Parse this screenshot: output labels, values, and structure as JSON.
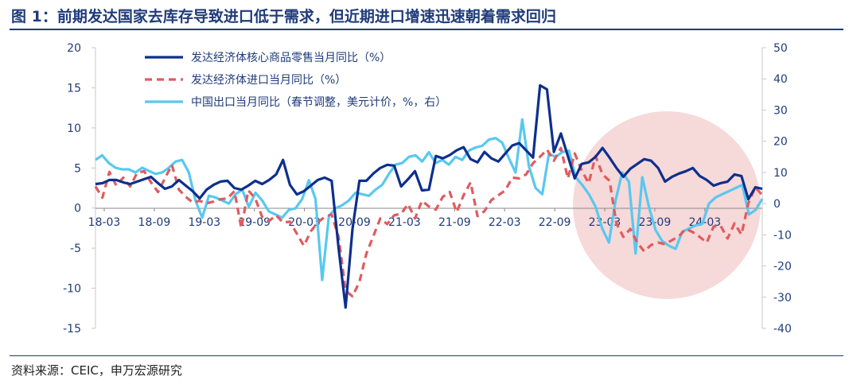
{
  "title": "图 1：前期发达国家去库存导致进口低于需求，但近期进口增速迅速朝着需求回归",
  "source": "资料来源：CEIC，申万宏源研究",
  "colors": {
    "core_retail": "#0d2f8e",
    "dev_import": "#e05b5f",
    "china_export": "#58c8f0",
    "highlight": "#f6d9d9",
    "axis": "#1f3b7a"
  },
  "chart_data": {
    "type": "line",
    "y_left_lim": [
      -15,
      20
    ],
    "y_right_lim": [
      -40,
      50
    ],
    "y_left_ticks": [
      "-15",
      "-10",
      "-5",
      "0",
      "5",
      "10",
      "15",
      "20"
    ],
    "y_right_ticks": [
      "-40",
      "-30",
      "-20",
      "-10",
      "0",
      "10",
      "20",
      "30",
      "40",
      "50"
    ],
    "x_ticks": [
      "18-03",
      "18-09",
      "19-03",
      "19-09",
      "20-03",
      "20-09",
      "21-03",
      "21-09",
      "22-03",
      "22-09",
      "23-03",
      "23-09",
      "24-03"
    ],
    "grid": false,
    "legend_position": "top-left",
    "series": [
      {
        "name": "发达经济体核心商品零售当月同比（%）",
        "axis": "left",
        "style": "solid",
        "values": [
          3.0,
          3.1,
          3.5,
          3.5,
          3.2,
          3.0,
          3.3,
          3.6,
          3.9,
          3.1,
          2.4,
          2.7,
          3.5,
          2.8,
          2.1,
          1.2,
          2.3,
          2.9,
          3.3,
          3.4,
          2.5,
          2.3,
          2.8,
          3.4,
          3.0,
          3.5,
          4.2,
          6.0,
          2.9,
          1.7,
          2.1,
          2.8,
          3.5,
          3.8,
          3.4,
          -5.0,
          -12.4,
          -2.6,
          3.4,
          3.4,
          4.3,
          5.0,
          5.4,
          5.3,
          2.7,
          3.6,
          4.6,
          2.2,
          2.3,
          6.5,
          6.2,
          6.6,
          7.2,
          7.6,
          6.1,
          5.7,
          7.0,
          6.2,
          5.8,
          6.8,
          7.8,
          8.1,
          7.2,
          6.3,
          15.3,
          14.8,
          7.0,
          9.3,
          6.5,
          3.7,
          5.5,
          5.7,
          6.4,
          7.5,
          6.3,
          5.0,
          3.9,
          4.9,
          5.5,
          6.1,
          5.9,
          5.0,
          3.3,
          3.9,
          4.3,
          4.6,
          5.0,
          4.0,
          3.5,
          2.8,
          3.1,
          3.3,
          4.2,
          4.0,
          1.1,
          2.6,
          2.4
        ]
      },
      {
        "name": "发达经济体进口当月同比（%）",
        "axis": "left",
        "style": "dashed",
        "values": [
          2.7,
          1.3,
          4.5,
          2.8,
          3.8,
          2.7,
          4.4,
          4.6,
          3.2,
          2.0,
          3.7,
          5.4,
          2.3,
          1.4,
          0.7,
          0.9,
          0.6,
          0.8,
          1.1,
          1.2,
          2.1,
          -2.5,
          2.2,
          1.2,
          -1.1,
          -1.6,
          -0.9,
          -1.8,
          -1.7,
          -3.2,
          -4.7,
          -2.9,
          -1.8,
          -1.1,
          -0.8,
          -3.6,
          -10.3,
          -11.0,
          -9.2,
          -5.7,
          -3.5,
          -1.3,
          -2.0,
          -0.9,
          -0.7,
          0.5,
          -1.3,
          0.9,
          0.2,
          -0.2,
          1.4,
          2.0,
          -0.5,
          1.6,
          3.2,
          -1.0,
          -0.4,
          1.0,
          1.6,
          2.2,
          3.8,
          3.7,
          4.2,
          5.6,
          6.4,
          7.3,
          5.9,
          7.5,
          3.7,
          6.8,
          4.7,
          3.1,
          6.5,
          4.2,
          3.4,
          -1.9,
          -3.6,
          -2.6,
          -4.3,
          -5.4,
          -4.6,
          -4.3,
          -4.5,
          -4.0,
          -3.5,
          -2.6,
          -3.0,
          -3.6,
          -4.3,
          -2.3,
          -2.2,
          -3.8,
          -1.9,
          -3.3,
          0.6,
          2.6,
          1.6
        ]
      },
      {
        "name": "中国出口当月同比（春节调整，美元计价，%，右）",
        "axis": "right",
        "style": "solid",
        "values": [
          14.0,
          15.5,
          13.0,
          11.5,
          11.0,
          11.0,
          10.0,
          11.5,
          10.5,
          9.5,
          10.0,
          11.5,
          13.5,
          14.0,
          10.0,
          1.0,
          -4.5,
          2.5,
          2.0,
          1.0,
          0.0,
          3.0,
          4.5,
          -1.0,
          3.5,
          1.0,
          -2.5,
          -3.5,
          -4.5,
          -2.0,
          -1.5,
          1.5,
          7.5,
          1.5,
          -24.5,
          -4.0,
          -1.5,
          -0.5,
          1.0,
          3.5,
          3.0,
          2.5,
          4.5,
          6.0,
          9.5,
          12.5,
          13.0,
          15.0,
          15.5,
          13.5,
          16.5,
          13.0,
          14.0,
          12.5,
          15.0,
          14.0,
          17.0,
          18.0,
          18.5,
          20.5,
          21.0,
          19.5,
          14.5,
          10.0,
          27.0,
          12.0,
          5.0,
          3.0,
          16.0,
          15.0,
          16.5,
          17.0,
          8.5,
          6.0,
          3.0,
          -1.0,
          -8.0,
          -12.5,
          1.0,
          10.0,
          7.0,
          -16.0,
          8.5,
          -1.0,
          -8.5,
          -12.0,
          -13.5,
          -14.5,
          -9.0,
          -8.0,
          -7.0,
          -6.5,
          0.0,
          2.0,
          3.0,
          4.0,
          5.0,
          6.0,
          -3.5,
          -2.0,
          1.5
        ]
      }
    ]
  }
}
